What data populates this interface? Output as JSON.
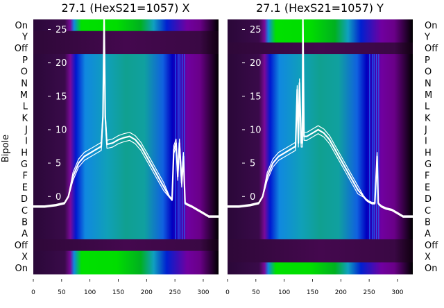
{
  "chart_data": [
    {
      "type": "heatmap",
      "title": "27.1 (HexS21=1057) X",
      "ylabel": "Bipole",
      "row_labels": [
        "On",
        "Y",
        "Off",
        "P",
        "O",
        "N",
        "M",
        "L",
        "K",
        "J",
        "I",
        "H",
        "G",
        "F",
        "E",
        "D",
        "C",
        "B",
        "A",
        "Off",
        "X",
        "On"
      ],
      "row_kinds": [
        "green",
        "dark",
        "dark",
        "spec",
        "spec",
        "spec",
        "spec",
        "spec",
        "spec",
        "spec",
        "spec",
        "spec",
        "spec",
        "spec",
        "spec",
        "spec",
        "spec",
        "spec",
        "spec",
        "dark",
        "green",
        "green"
      ],
      "xlim": [
        0,
        327
      ],
      "xticks": [
        "0",
        "50",
        "100",
        "150",
        "200",
        "250",
        "300"
      ],
      "overlay_ylim": [
        -11.6,
        26.5
      ],
      "overlay_yticks": [
        "0",
        "5",
        "10",
        "15",
        "20",
        "25"
      ],
      "overlay_line": {
        "x": [
          0,
          20,
          40,
          55,
          62,
          70,
          80,
          90,
          100,
          110,
          120,
          123,
          125,
          127,
          130,
          140,
          150,
          160,
          170,
          180,
          190,
          200,
          210,
          220,
          230,
          240,
          245,
          248,
          252,
          255,
          258,
          262,
          265,
          268,
          272,
          280,
          290,
          300,
          310,
          327
        ],
        "y": [
          -1.5,
          -1.5,
          -1.3,
          -1,
          0,
          3,
          5,
          6,
          6.5,
          7,
          7.5,
          12,
          27,
          12,
          7.8,
          8,
          8.5,
          8.8,
          9,
          8.5,
          7.5,
          6,
          4.5,
          3,
          1.5,
          0,
          -0.5,
          7,
          8,
          3,
          8,
          2,
          6,
          -1,
          -1.2,
          -1.5,
          -2,
          -2.5,
          -3,
          -3
        ]
      }
    },
    {
      "type": "heatmap",
      "title": "27.1 (HexS21=1057) Y",
      "row_labels": [
        "On",
        "Y",
        "Off",
        "P",
        "O",
        "N",
        "M",
        "L",
        "K",
        "J",
        "I",
        "H",
        "G",
        "F",
        "E",
        "D",
        "C",
        "B",
        "A",
        "Off",
        "X",
        "On"
      ],
      "row_kinds": [
        "green",
        "green",
        "dark",
        "spec",
        "spec",
        "spec",
        "spec",
        "spec",
        "spec",
        "spec",
        "spec",
        "spec",
        "spec",
        "spec",
        "spec",
        "spec",
        "spec",
        "spec",
        "spec",
        "dark",
        "dark",
        "green"
      ],
      "xlim": [
        0,
        327
      ],
      "xticks": [
        "0",
        "50",
        "100",
        "150",
        "200",
        "250",
        "300"
      ],
      "overlay_ylim": [
        -11.6,
        26.5
      ],
      "overlay_yticks": [
        "0",
        "5",
        "10",
        "15",
        "20",
        "25"
      ],
      "overlay_line": {
        "x": [
          0,
          20,
          40,
          55,
          62,
          70,
          80,
          90,
          100,
          110,
          120,
          123,
          125,
          127,
          130,
          132,
          133,
          135,
          140,
          150,
          160,
          170,
          180,
          190,
          200,
          210,
          220,
          230,
          240,
          245,
          250,
          255,
          260,
          264,
          266,
          268,
          272,
          280,
          290,
          300,
          310,
          327
        ],
        "y": [
          -1.5,
          -1.5,
          -1.3,
          -1,
          0,
          3,
          5,
          6,
          6.5,
          7,
          7.5,
          16,
          8,
          17,
          8,
          8,
          27,
          9,
          9,
          9.5,
          10,
          9.5,
          8.5,
          7,
          5.5,
          4,
          2.5,
          1,
          0,
          -0.5,
          -0.8,
          -1,
          -1,
          6,
          -1,
          -1.2,
          -1.5,
          -1.8,
          -2,
          -2.5,
          -3,
          -3
        ]
      }
    }
  ]
}
